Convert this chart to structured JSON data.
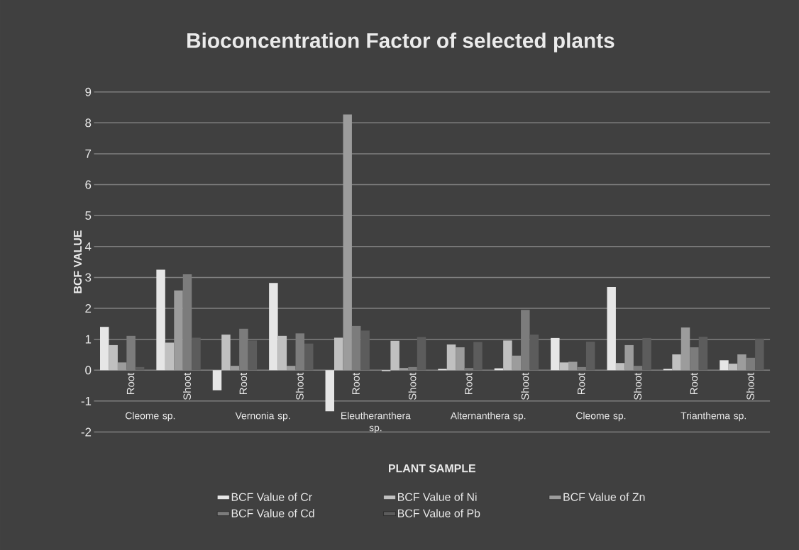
{
  "chart_data": {
    "type": "bar",
    "title": "Bioconcentration Factor of selected plants",
    "xlabel": "PLANT SAMPLE",
    "ylabel": "BCF VALUE",
    "categories": [
      "Root",
      "Shoot",
      "Root",
      "Shoot",
      "Root",
      "Shoot",
      "Root",
      "Shoot",
      "Root",
      "Shoot",
      "Root",
      "Shoot"
    ],
    "annotations": [
      "Cleome sp.",
      "Vernonia sp.",
      "Eleutheranthera sp.",
      "Alternanthera sp.",
      "Cleome sp.",
      "Trianthema sp."
    ],
    "series": [
      {
        "name": "BCF Value of  Cr",
        "color": "#e6e6e6",
        "values": [
          1.4,
          3.25,
          -0.65,
          2.82,
          -1.33,
          -0.03,
          0.04,
          0.06,
          1.04,
          2.69,
          0.04,
          0.32
        ]
      },
      {
        "name": "BCF Value of  Ni",
        "color": "#c0c0c0",
        "values": [
          0.81,
          0.89,
          1.15,
          1.11,
          1.05,
          0.95,
          0.83,
          0.96,
          0.25,
          0.23,
          0.51,
          0.21
        ]
      },
      {
        "name": "BCF Value of  Zn",
        "color": "#9c9c9c",
        "values": [
          0.25,
          2.58,
          0.14,
          0.14,
          8.27,
          0.07,
          0.74,
          0.47,
          0.27,
          0.81,
          1.38,
          0.51
        ]
      },
      {
        "name": "BCF Value of  Cd",
        "color": "#7c7c7c",
        "values": [
          1.11,
          3.1,
          1.34,
          1.19,
          1.43,
          0.1,
          0.07,
          1.95,
          0.1,
          0.14,
          0.74,
          0.4
        ]
      },
      {
        "name": "BCF Value of  Pb",
        "color": "#5c5c5c",
        "values": [
          0.1,
          1.05,
          0.96,
          0.86,
          1.28,
          1.07,
          0.91,
          1.15,
          0.92,
          1.04,
          1.08,
          1.02
        ]
      }
    ],
    "ylim": [
      -2,
      9
    ],
    "yticks": [
      -2,
      -1,
      0,
      1,
      2,
      3,
      4,
      5,
      6,
      7,
      8,
      9
    ],
    "grid": "y",
    "legend": "bottom"
  }
}
